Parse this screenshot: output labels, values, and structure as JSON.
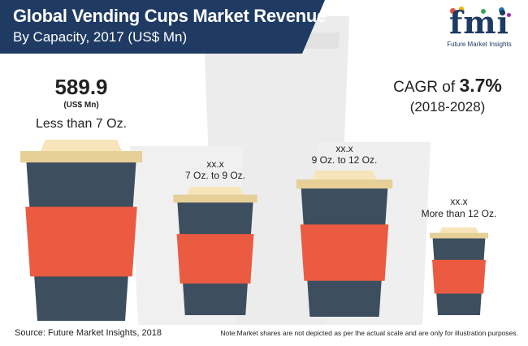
{
  "header": {
    "title": "Global Vending Cups Market Revenue",
    "subtitle": "By Capacity, 2017 (US$ Mn)"
  },
  "logo": {
    "text": "fmi",
    "tagline": "Future Market Insights",
    "dot_colors": [
      "#e94e3c",
      "#f4b400",
      "#3aa655",
      "#1f77b4",
      "#9c27b0"
    ]
  },
  "cagr": {
    "label": "CAGR of",
    "value": "3.7%",
    "period": "(2018-2028)"
  },
  "colors": {
    "header_bg": "#1f3a63",
    "lid_top": "#f7e4b8",
    "lid_rim": "#e7cf98",
    "cup_body": "#3d4f5e",
    "sleeve": "#ea5b42",
    "background_cup": "#e3e3e3"
  },
  "chart_data": {
    "type": "bar",
    "title": "Global Vending Cups Market Revenue",
    "subtitle": "By Capacity, 2017 (US$ Mn)",
    "categories": [
      "Less than 7 Oz.",
      "7 Oz. to 9 Oz.",
      "9 Oz. to 12 Oz.",
      "More than 12 Oz."
    ],
    "value_labels": [
      "589.9",
      "xx.x",
      "xx.x",
      "xx.x"
    ],
    "values": [
      589.9,
      null,
      null,
      null
    ],
    "unit": "(US$ Mn)",
    "encoding": "pictograph cup size",
    "legend": "none"
  },
  "footer": {
    "source": "Source: Future Market Insights, 2018",
    "note": "Note:Market shares are not depicted as per the actual scale and are only for illustration purposes."
  }
}
